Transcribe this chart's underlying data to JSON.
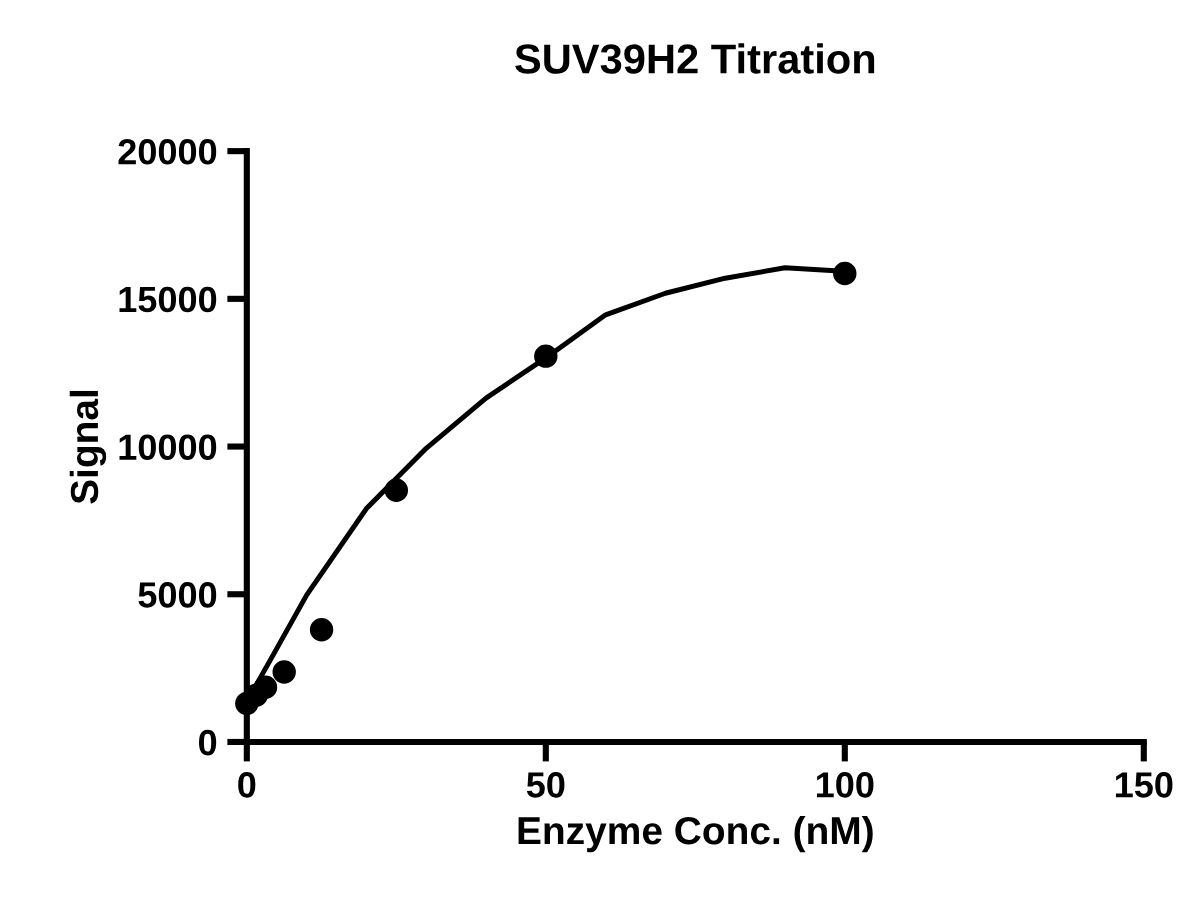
{
  "chart_data": {
    "type": "scatter",
    "title": "SUV39H2 Titration",
    "xlabel": "Enzyme Conc. (nM)",
    "ylabel": "Signal",
    "xlim": [
      0,
      150
    ],
    "xticks": [
      0,
      50,
      100,
      150
    ],
    "ylim": [
      0,
      20000
    ],
    "yticks": [
      0,
      5000,
      10000,
      15000,
      20000
    ],
    "grid": false,
    "legend": false,
    "series": [
      {
        "color": "#000000",
        "marker": "circle",
        "x": [
          0,
          1.56,
          3.125,
          6.25,
          12.5,
          25,
          50,
          100
        ],
        "values": [
          1300,
          1580,
          1850,
          2370,
          3800,
          8520,
          13060,
          15860
        ]
      },
      {
        "type": "line",
        "color": "#000000",
        "marker": "none",
        "line_style": "solid",
        "x": [
          0,
          5,
          10,
          20,
          30,
          40,
          50,
          60,
          70,
          80,
          90,
          100
        ],
        "values": [
          1360,
          3160,
          4970,
          7900,
          9940,
          11640,
          13000,
          14460,
          15190,
          15700,
          16050,
          15930
        ]
      }
    ]
  }
}
